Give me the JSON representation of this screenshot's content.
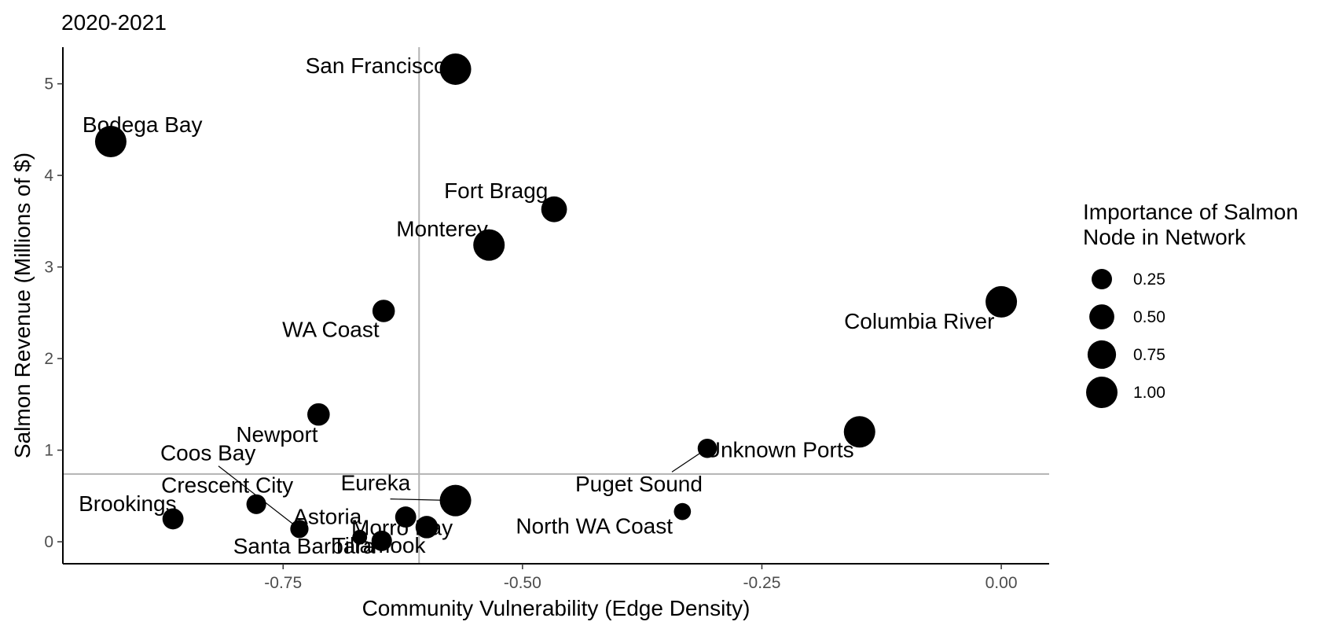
{
  "chart_data": {
    "type": "scatter",
    "title": "2020-2021",
    "xlabel": "Community Vulnerability (Edge Density)",
    "ylabel": "Salmon Revenue (Millions of $)",
    "xlim": [
      -0.98,
      0.05
    ],
    "ylim": [
      -0.24,
      5.4
    ],
    "x_ticks": [
      -0.75,
      -0.5,
      -0.25,
      0.0
    ],
    "x_tick_labels": [
      "-0.75",
      "-0.50",
      "-0.25",
      "0.00"
    ],
    "y_ticks": [
      0,
      1,
      2,
      3,
      4,
      5
    ],
    "y_tick_labels": [
      "0",
      "1",
      "2",
      "3",
      "4",
      "5"
    ],
    "reference_lines": {
      "vline_x": -0.608,
      "hline_y": 0.74
    },
    "grid": false,
    "legend_position": "right",
    "size_legend": {
      "title_lines": [
        "Importance of Salmon",
        "Node in Network"
      ],
      "values": [
        0.25,
        0.5,
        0.75,
        1.0
      ],
      "labels": [
        "0.25",
        "0.50",
        "0.75",
        "1.00"
      ]
    },
    "points": [
      {
        "label": "San Francisco",
        "x": -0.57,
        "y": 5.16,
        "size": 1.0
      },
      {
        "label": "Bodega Bay",
        "x": -0.93,
        "y": 4.37,
        "size": 1.0
      },
      {
        "label": "Fort Bragg",
        "x": -0.467,
        "y": 3.63,
        "size": 0.55
      },
      {
        "label": "Monterey",
        "x": -0.535,
        "y": 3.24,
        "size": 1.0
      },
      {
        "label": "Columbia River",
        "x": 0.0,
        "y": 2.62,
        "size": 1.0
      },
      {
        "label": "WA Coast",
        "x": -0.645,
        "y": 2.52,
        "size": 0.35
      },
      {
        "label": "Newport",
        "x": -0.713,
        "y": 1.39,
        "size": 0.35
      },
      {
        "label": "Unknown Ports",
        "x": -0.148,
        "y": 1.2,
        "size": 1.0
      },
      {
        "label": "Puget Sound",
        "x": -0.307,
        "y": 1.02,
        "size": 0.2
      },
      {
        "label": "Eureka",
        "x": -0.57,
        "y": 0.45,
        "size": 1.0
      },
      {
        "label": "Crescent City",
        "x": -0.778,
        "y": 0.41,
        "size": 0.22
      },
      {
        "label": "North WA Coast",
        "x": -0.333,
        "y": 0.33,
        "size": 0.12
      },
      {
        "label": "Astoria",
        "x": -0.622,
        "y": 0.27,
        "size": 0.28
      },
      {
        "label": "Brookings",
        "x": -0.865,
        "y": 0.25,
        "size": 0.28
      },
      {
        "label": "Morro Bay",
        "x": -0.6,
        "y": 0.16,
        "size": 0.35
      },
      {
        "label": "Coos Bay",
        "x": -0.733,
        "y": 0.14,
        "size": 0.16
      },
      {
        "label": "Santa Barbara",
        "x": -0.67,
        "y": 0.05,
        "size": 0.06
      },
      {
        "label": "Tillamook",
        "x": -0.647,
        "y": 0.01,
        "size": 0.25
      }
    ]
  }
}
